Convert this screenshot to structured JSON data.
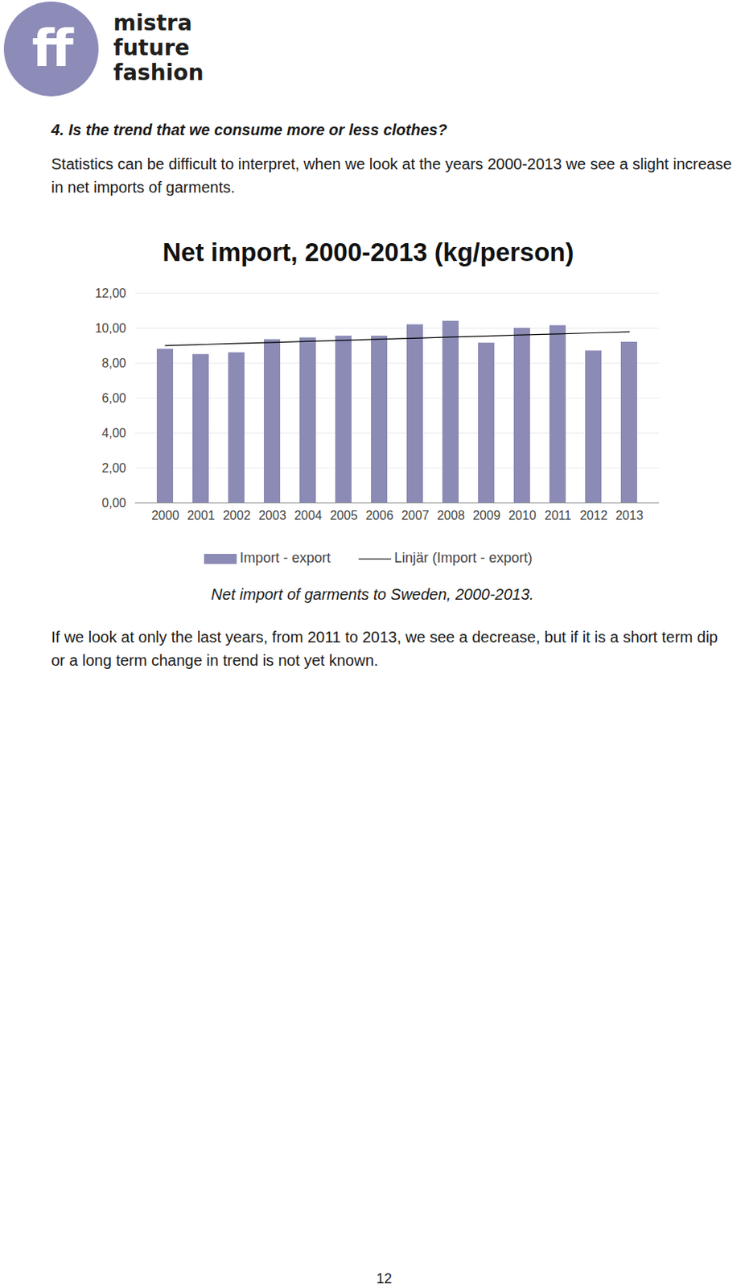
{
  "header": {
    "logo_text": "ff",
    "brand_lines": [
      "mistra",
      "future",
      "fashion"
    ]
  },
  "heading": "4. Is the trend that we consume more or less clothes?",
  "paragraphs_before": [
    "Statistics can be difficult to interpret, when we look at the years 2000-2013 we see a slight increase in net imports of garments."
  ],
  "chart_data": {
    "type": "bar",
    "title": "Net import, 2000-2013 (kg/person)",
    "categories": [
      "2000",
      "2001",
      "2002",
      "2003",
      "2004",
      "2005",
      "2006",
      "2007",
      "2008",
      "2009",
      "2010",
      "2011",
      "2012",
      "2013"
    ],
    "series": [
      {
        "name": "Import - export",
        "type": "bar",
        "color": "#8b8bb6",
        "values": [
          8.8,
          8.5,
          8.6,
          9.35,
          9.45,
          9.55,
          9.55,
          10.2,
          10.4,
          9.15,
          10.0,
          10.15,
          8.7,
          9.2
        ]
      },
      {
        "name": "Linjär (Import - export)",
        "type": "linear_trend",
        "color": "#000000",
        "line_style": "solid"
      }
    ],
    "ylim": [
      0,
      12
    ],
    "yticks": [
      {
        "value": 0,
        "label": "0,00"
      },
      {
        "value": 2,
        "label": "2,00"
      },
      {
        "value": 4,
        "label": "4,00"
      },
      {
        "value": 6,
        "label": "6,00"
      },
      {
        "value": 8,
        "label": "8,00"
      },
      {
        "value": 10,
        "label": "10,00"
      },
      {
        "value": 12,
        "label": "12,00"
      }
    ],
    "grid": true,
    "legend": "bottom"
  },
  "caption": "Net import of garments to Sweden, 2000-2013.",
  "paragraphs_after": [
    "If we look at only the last years, from 2011 to 2013, we see a decrease, but if it is a short term dip or a long term change in trend is not yet known."
  ],
  "page_number": 12
}
